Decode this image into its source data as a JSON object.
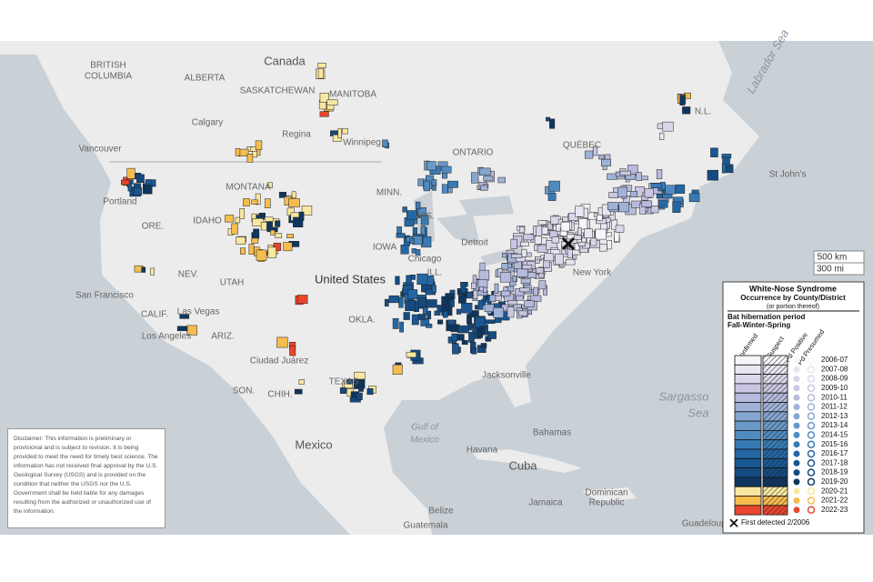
{
  "map": {
    "labels": [
      "Canada",
      "BRITISH",
      "COLUMBIA",
      "ALBERTA",
      "SASKATCHEWAN",
      "MANITOBA",
      "Calgary",
      "Regina",
      "Winnipeg",
      "ONTARIO",
      "QUÉBEC",
      "N.L.",
      "Vancouver",
      "Portland",
      "MONTANA",
      "ORE.",
      "IDAHO",
      "NEV.",
      "UTAH",
      "San Francisco",
      "CALIF.",
      "Las Vegas",
      "Los Angeles",
      "ARIZ.",
      "Ciudad Juárez",
      "SON.",
      "CHIH.",
      "TEXAS",
      "OKLA.",
      "Mexico",
      "Gulf of",
      "Mexico",
      "Havana",
      "Cuba",
      "Bahamas",
      "Jacksonville",
      "Detroit",
      "Chicago",
      "IOWA",
      "ILL.",
      "MINN.",
      "WIS.",
      "New York",
      "Sargasso",
      "Sea",
      "Labrador Sea",
      "St John's",
      "Jamaica",
      "Dominican",
      "Republic",
      "Belize",
      "Guatemala",
      "Guadeloupe",
      "United States"
    ],
    "scale": [
      "500 km",
      "300 mi"
    ]
  },
  "legend": {
    "title": "White-Nose Syndrome",
    "subtitle": "Occurrence by County/District",
    "note": "(or portion thereof)",
    "period": "Bat hibernation period",
    "season": "Fall-Winter-Spring",
    "columns": [
      "Confirmed",
      "Suspect",
      "Pd Positive",
      "Pd Presumed"
    ],
    "years": [
      "2006-07",
      "2007-08",
      "2008-09",
      "2009-10",
      "2010-11",
      "2011-12",
      "2012-13",
      "2013-14",
      "2014-15",
      "2015-16",
      "2016-17",
      "2017-18",
      "2018-19",
      "2019-20",
      "2020-21",
      "2021-22",
      "2022-23"
    ],
    "colors": [
      "#f6f5fa",
      "#e8e6f1",
      "#d9d7ea",
      "#c9c7e1",
      "#b6badc",
      "#a0b2d7",
      "#84a6d0",
      "#6a99c8",
      "#4f8bc0",
      "#377ab5",
      "#2467a4",
      "#1a5793",
      "#154a80",
      "#0f365f",
      "#f8e7a0",
      "#f5bd4e",
      "#e8452c"
    ],
    "footnote": "First detected 2/2006"
  },
  "disclaimer": "Disclaimer: This information is preliminary or provisional and is subject to revision. It is being provided to meet the need for timely best science. The information has not received final approval by the U.S. Geological Survey (USGS) and is provided on the condition that neither the USGS nor the U.S. Government shall be held liable for any damages resulting from the authorized or unauthorized use of the information."
}
